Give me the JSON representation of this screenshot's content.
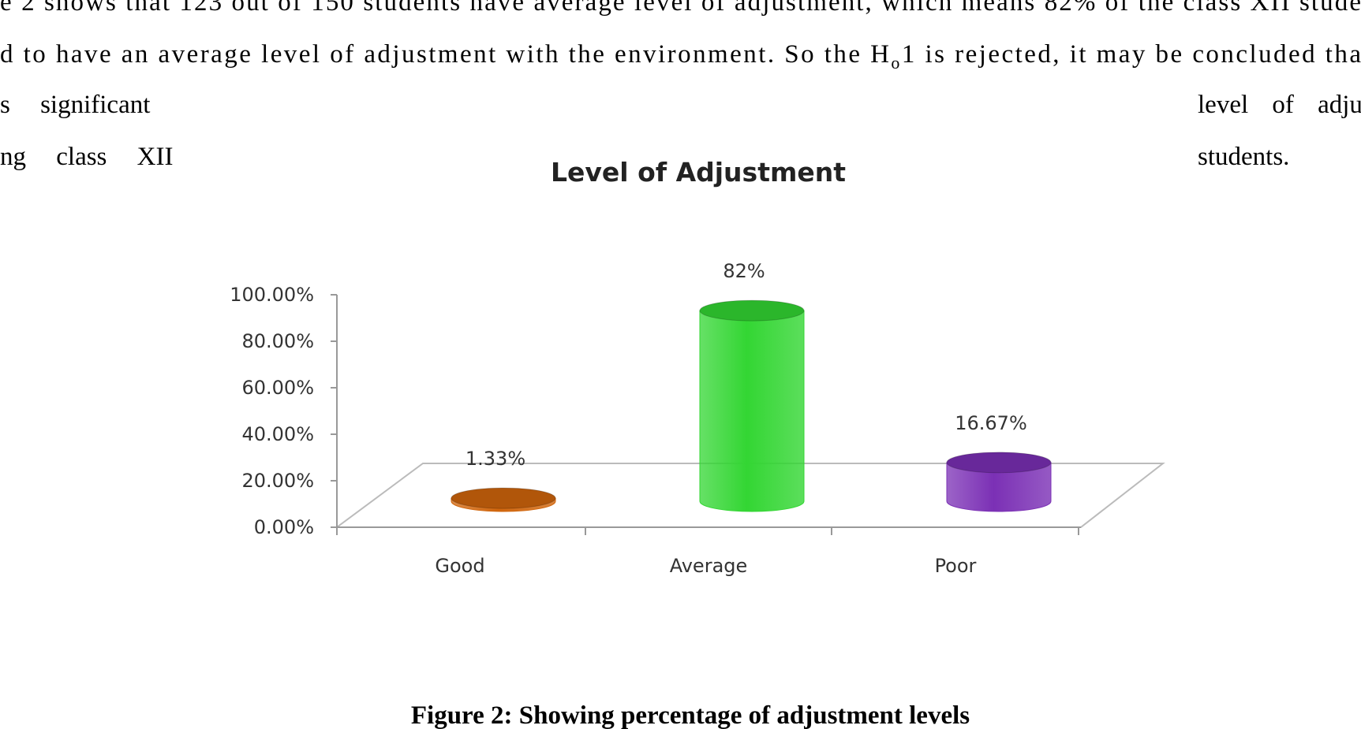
{
  "paragraph": {
    "lines": [
      {
        "text": "e 2 shows that 123 out of 150 students have average level of adjustment, which means 82% of the class XII stude"
      },
      {
        "parts": [
          "d to have an average level of adjustment with the environment.  So the H",
          "o",
          "1 is rejected, it may be concluded tha"
        ]
      },
      {
        "left": "s significant",
        "right": "level of adju"
      },
      {
        "left": "ng class XII",
        "right": "students."
      }
    ]
  },
  "chart_data": {
    "type": "bar",
    "title": "Level of Adjustment",
    "categories": [
      "Good",
      "Average",
      "Poor"
    ],
    "values": [
      1.33,
      82,
      16.67
    ],
    "value_labels": [
      "1.33%",
      "82%",
      "16.67%"
    ],
    "colors": [
      "#d0650c",
      "#33d633",
      "#7b30b5"
    ],
    "ylim": [
      0,
      100
    ],
    "yticks": [
      {
        "value": 0,
        "label": "0.00%"
      },
      {
        "value": 20,
        "label": "20.00%"
      },
      {
        "value": 40,
        "label": "40.00%"
      },
      {
        "value": 60,
        "label": "60.00%"
      },
      {
        "value": 80,
        "label": "80.00%"
      },
      {
        "value": 100,
        "label": "100.00%"
      }
    ],
    "grid": false
  },
  "figure_caption": "Figure 2: Showing percentage of adjustment levels"
}
